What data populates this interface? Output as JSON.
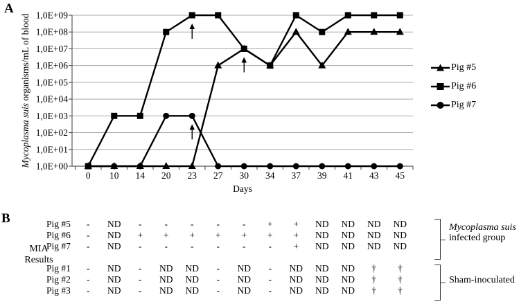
{
  "panel_a": {
    "label": "A",
    "chart_data": {
      "type": "line",
      "title": "",
      "xlabel": "Days",
      "ylabel_italic": "Mycoplasma suis",
      "ylabel_rest": " organisms/mL of blood",
      "x_categories": [
        "0",
        "10",
        "14",
        "20",
        "23",
        "27",
        "30",
        "34",
        "37",
        "39",
        "41",
        "43",
        "45"
      ],
      "ytick_labels": [
        "1,0E+00",
        "1,0E+01",
        "1,0E+02",
        "1,0E+03",
        "1,0E+04",
        "1,0E+05",
        "1,0E+06",
        "1,0E+07",
        "1,0E+08",
        "1,0E+09"
      ],
      "yaxis_log_range": [
        0,
        9
      ],
      "grid": "horizontal",
      "legend_position": "right",
      "series": [
        {
          "name": "Pig #5",
          "marker": "triangle",
          "color": "#000000",
          "values_log10": [
            0,
            0,
            0,
            0,
            0,
            6,
            7,
            6,
            8,
            6,
            8,
            8,
            8
          ]
        },
        {
          "name": "Pig #6",
          "marker": "square",
          "color": "#000000",
          "values_log10": [
            0,
            3,
            3,
            8,
            9,
            9,
            7,
            6,
            9,
            8,
            9,
            9,
            9
          ]
        },
        {
          "name": "Pig #7",
          "marker": "circle",
          "color": "#000000",
          "values_log10": [
            0,
            0,
            0,
            3,
            3,
            0,
            0,
            0,
            0,
            0,
            0,
            0,
            0
          ]
        }
      ],
      "annotations": [
        {
          "type": "up-arrow",
          "day": "23",
          "at_log10": 9
        },
        {
          "type": "up-arrow",
          "day": "30",
          "at_log10": 7
        },
        {
          "type": "up-arrow",
          "day": "23",
          "at_log10": 3
        }
      ],
      "colors": {
        "gridline": "#a8a8a8",
        "axis": "#595959",
        "series": "#000000"
      }
    }
  },
  "panel_b": {
    "label": "B",
    "header_line1": "MIA",
    "header_line2": "Results",
    "groups": [
      {
        "group_label_line1": "Mycoplasma suis",
        "group_label_line2": "infected group",
        "rows": [
          {
            "name": "Pig #5",
            "values": [
              "-",
              "ND",
              "-",
              "-",
              "-",
              "-",
              "-",
              "+",
              "+",
              "ND",
              "ND",
              "ND",
              "ND"
            ]
          },
          {
            "name": "Pig #6",
            "values": [
              "-",
              "ND",
              "+",
              "+",
              "+",
              "+",
              "+",
              "+",
              "+",
              "ND",
              "ND",
              "ND",
              "ND"
            ]
          },
          {
            "name": "Pig #7",
            "values": [
              "-",
              "ND",
              "-",
              "-",
              "-",
              "-",
              "-",
              "-",
              "+",
              "ND",
              "ND",
              "ND",
              "ND"
            ]
          }
        ]
      },
      {
        "group_label_line1": "Sham-inoculated",
        "group_label_line2": "",
        "rows": [
          {
            "name": "Pig #1",
            "values": [
              "-",
              "ND",
              "-",
              "ND",
              "ND",
              "-",
              "ND",
              "-",
              "ND",
              "ND",
              "ND",
              "†",
              "†"
            ]
          },
          {
            "name": "Pig #2",
            "values": [
              "-",
              "ND",
              "-",
              "ND",
              "ND",
              "-",
              "ND",
              "-",
              "ND",
              "ND",
              "ND",
              "†",
              "†"
            ]
          },
          {
            "name": "Pig #3",
            "values": [
              "-",
              "ND",
              "-",
              "ND",
              "ND",
              "-",
              "ND",
              "-",
              "ND",
              "ND",
              "ND",
              "†",
              "†"
            ]
          }
        ]
      }
    ]
  }
}
